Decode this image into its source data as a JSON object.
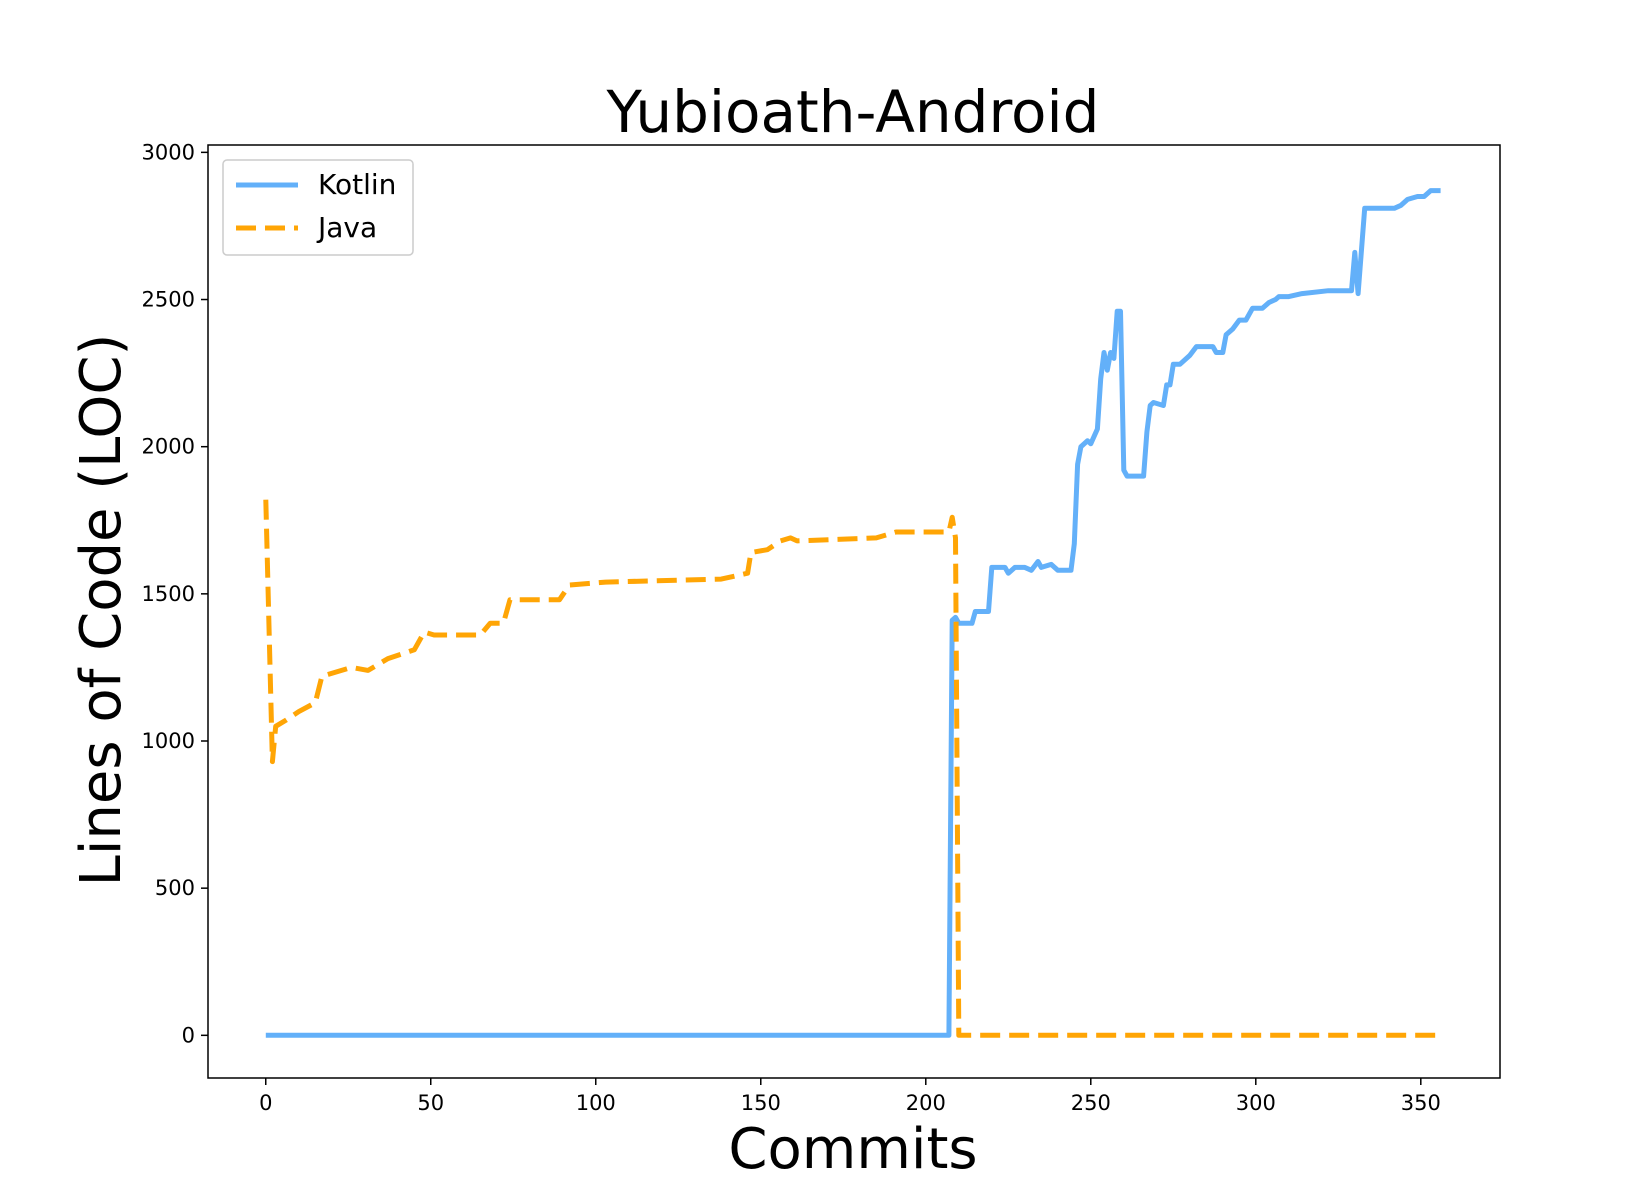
{
  "chart_data": {
    "type": "line",
    "title": "Yubioath-Android",
    "xlabel": "Commits",
    "ylabel": "Lines of Code (LOC)",
    "xlim": [
      -17.5,
      374
    ],
    "ylim": [
      -145,
      3025
    ],
    "xticks": [
      0,
      50,
      100,
      150,
      200,
      250,
      300,
      350
    ],
    "yticks": [
      0,
      500,
      1000,
      1500,
      2000,
      2500,
      3000
    ],
    "legend_position": "top-left",
    "series": [
      {
        "name": "Kotlin",
        "color": "#63b0f9",
        "dash": "solid",
        "points": [
          [
            0,
            0
          ],
          [
            207,
            0
          ],
          [
            208,
            1410
          ],
          [
            209,
            1420
          ],
          [
            210,
            1400
          ],
          [
            214,
            1400
          ],
          [
            215,
            1440
          ],
          [
            219,
            1440
          ],
          [
            220,
            1590
          ],
          [
            224,
            1590
          ],
          [
            225,
            1570
          ],
          [
            227,
            1590
          ],
          [
            230,
            1590
          ],
          [
            232,
            1580
          ],
          [
            234,
            1610
          ],
          [
            235,
            1590
          ],
          [
            238,
            1600
          ],
          [
            240,
            1580
          ],
          [
            244,
            1580
          ],
          [
            245,
            1670
          ],
          [
            246,
            1940
          ],
          [
            247,
            2000
          ],
          [
            249,
            2020
          ],
          [
            250,
            2010
          ],
          [
            252,
            2060
          ],
          [
            253,
            2230
          ],
          [
            254,
            2320
          ],
          [
            255,
            2260
          ],
          [
            256,
            2320
          ],
          [
            257,
            2300
          ],
          [
            258,
            2460
          ],
          [
            259,
            2460
          ],
          [
            260,
            1920
          ],
          [
            261,
            1900
          ],
          [
            266,
            1900
          ],
          [
            267,
            2050
          ],
          [
            268,
            2140
          ],
          [
            269,
            2150
          ],
          [
            272,
            2140
          ],
          [
            273,
            2210
          ],
          [
            274,
            2210
          ],
          [
            275,
            2280
          ],
          [
            277,
            2280
          ],
          [
            280,
            2310
          ],
          [
            282,
            2340
          ],
          [
            287,
            2340
          ],
          [
            288,
            2320
          ],
          [
            290,
            2320
          ],
          [
            291,
            2380
          ],
          [
            293,
            2400
          ],
          [
            295,
            2430
          ],
          [
            297,
            2430
          ],
          [
            299,
            2470
          ],
          [
            302,
            2470
          ],
          [
            304,
            2490
          ],
          [
            306,
            2500
          ],
          [
            307,
            2510
          ],
          [
            310,
            2510
          ],
          [
            314,
            2520
          ],
          [
            322,
            2530
          ],
          [
            329,
            2530
          ],
          [
            330,
            2660
          ],
          [
            331,
            2520
          ],
          [
            333,
            2810
          ],
          [
            342,
            2810
          ],
          [
            344,
            2820
          ],
          [
            346,
            2840
          ],
          [
            349,
            2850
          ],
          [
            351,
            2850
          ],
          [
            353,
            2870
          ],
          [
            356,
            2870
          ]
        ]
      },
      {
        "name": "Java",
        "color": "#ffa505",
        "dash": "dashed",
        "points": [
          [
            0,
            1820
          ],
          [
            2,
            930
          ],
          [
            3,
            1050
          ],
          [
            6,
            1070
          ],
          [
            10,
            1100
          ],
          [
            15,
            1130
          ],
          [
            17,
            1220
          ],
          [
            26,
            1250
          ],
          [
            31,
            1240
          ],
          [
            37,
            1280
          ],
          [
            45,
            1310
          ],
          [
            48,
            1370
          ],
          [
            51,
            1360
          ],
          [
            65,
            1360
          ],
          [
            68,
            1400
          ],
          [
            72,
            1400
          ],
          [
            74,
            1480
          ],
          [
            89,
            1480
          ],
          [
            92,
            1530
          ],
          [
            103,
            1540
          ],
          [
            138,
            1550
          ],
          [
            146,
            1570
          ],
          [
            147,
            1640
          ],
          [
            152,
            1650
          ],
          [
            156,
            1680
          ],
          [
            159,
            1690
          ],
          [
            161,
            1680
          ],
          [
            185,
            1690
          ],
          [
            191,
            1710
          ],
          [
            207,
            1710
          ],
          [
            208,
            1760
          ],
          [
            209,
            1690
          ],
          [
            210,
            0
          ],
          [
            356,
            0
          ]
        ]
      }
    ]
  }
}
